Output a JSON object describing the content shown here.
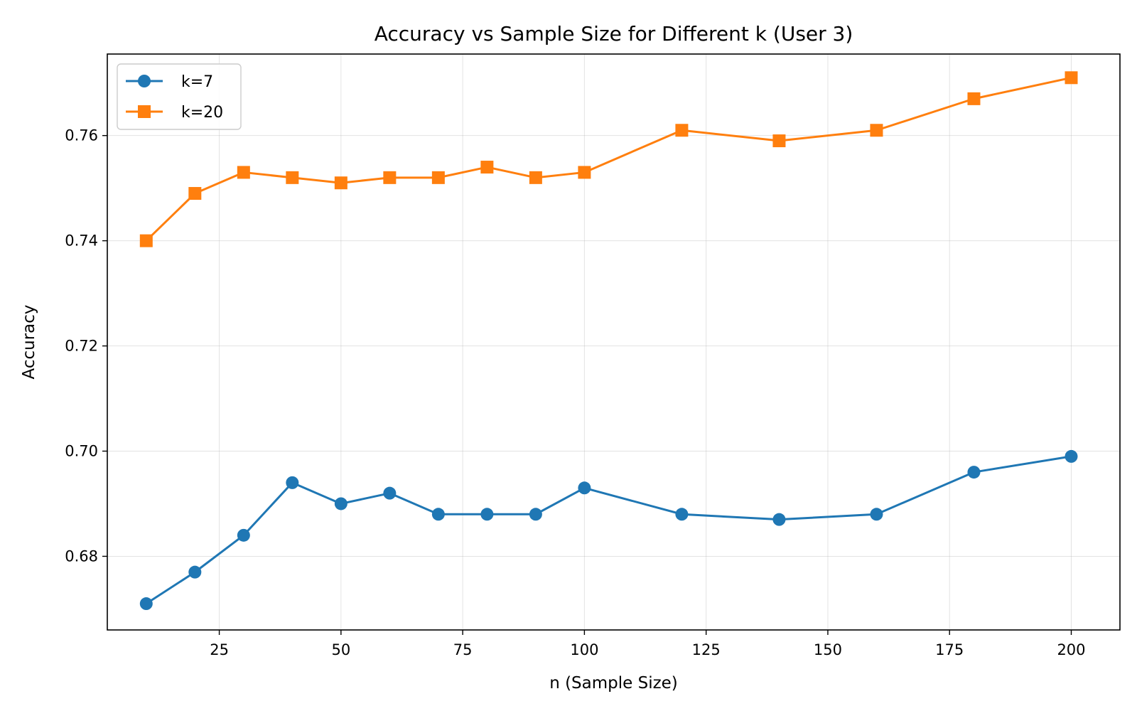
{
  "chart_data": {
    "type": "line",
    "title": "Accuracy vs Sample Size for Different k (User 3)",
    "xlabel": "n (Sample Size)",
    "ylabel": "Accuracy",
    "xlim": [
      2,
      210
    ],
    "ylim": [
      0.666,
      0.7755
    ],
    "xticks": [
      25,
      50,
      75,
      100,
      125,
      150,
      175,
      200
    ],
    "yticks": [
      0.68,
      0.7,
      0.72,
      0.74,
      0.76
    ],
    "grid": true,
    "legend_position": "top-left",
    "x": [
      10,
      20,
      30,
      40,
      50,
      60,
      70,
      80,
      90,
      100,
      120,
      140,
      160,
      180,
      200
    ],
    "series": [
      {
        "name": "k=7",
        "color": "#1f77b4",
        "marker": "circle",
        "values": [
          0.671,
          0.677,
          0.684,
          0.694,
          0.69,
          0.692,
          0.688,
          0.688,
          0.688,
          0.693,
          0.688,
          0.687,
          0.688,
          0.696,
          0.699
        ]
      },
      {
        "name": "k=20",
        "color": "#ff7f0e",
        "marker": "square",
        "values": [
          0.74,
          0.749,
          0.753,
          0.752,
          0.751,
          0.752,
          0.752,
          0.754,
          0.752,
          0.753,
          0.761,
          0.759,
          0.761,
          0.767,
          0.771
        ]
      }
    ]
  }
}
